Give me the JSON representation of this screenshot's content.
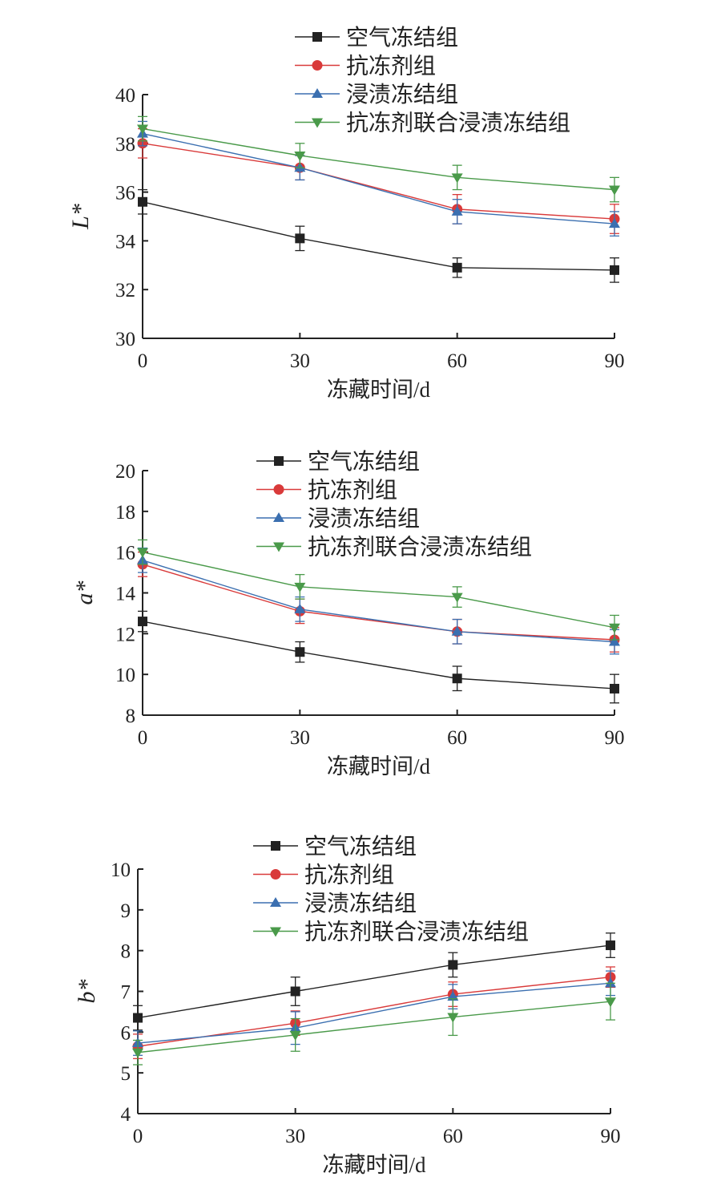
{
  "chart_data": [
    {
      "type": "line",
      "xlabel": "冻藏时间/d",
      "ylabel": "L*",
      "x": [
        0,
        30,
        60,
        90
      ],
      "xlim": [
        0,
        90
      ],
      "ylim": [
        30,
        40
      ],
      "yticks": [
        30,
        32,
        34,
        36,
        38,
        40
      ],
      "grid": false,
      "legend_position": "top",
      "series": [
        {
          "name": "空气冻结组",
          "color": "#222222",
          "marker": "square",
          "values": [
            35.6,
            34.1,
            32.9,
            32.8
          ],
          "errors": [
            0.5,
            0.5,
            0.4,
            0.5
          ]
        },
        {
          "name": "抗冻剂组",
          "color": "#d93a3a",
          "marker": "circle",
          "values": [
            38.0,
            37.0,
            35.3,
            34.9
          ],
          "errors": [
            0.6,
            0.5,
            0.6,
            0.6
          ]
        },
        {
          "name": "浸渍冻结组",
          "color": "#3b6fb0",
          "marker": "triangle-up",
          "values": [
            38.4,
            37.0,
            35.2,
            34.7
          ],
          "errors": [
            0.5,
            0.5,
            0.5,
            0.5
          ]
        },
        {
          "name": "抗冻剂联合浸渍冻结组",
          "color": "#4a9a4a",
          "marker": "triangle-down",
          "values": [
            38.6,
            37.5,
            36.6,
            36.1
          ],
          "errors": [
            0.5,
            0.5,
            0.5,
            0.5
          ]
        }
      ]
    },
    {
      "type": "line",
      "xlabel": "冻藏时间/d",
      "ylabel": "a*",
      "x": [
        0,
        30,
        60,
        90
      ],
      "xlim": [
        0,
        90
      ],
      "ylim": [
        8,
        20
      ],
      "yticks": [
        8,
        10,
        12,
        14,
        16,
        18,
        20
      ],
      "grid": false,
      "legend_position": "top",
      "series": [
        {
          "name": "空气冻结组",
          "color": "#222222",
          "marker": "square",
          "values": [
            12.6,
            11.1,
            9.8,
            9.3
          ],
          "errors": [
            0.5,
            0.5,
            0.6,
            0.7
          ]
        },
        {
          "name": "抗冻剂组",
          "color": "#d93a3a",
          "marker": "circle",
          "values": [
            15.4,
            13.1,
            12.1,
            11.7
          ],
          "errors": [
            0.6,
            0.6,
            0.6,
            0.6
          ]
        },
        {
          "name": "浸渍冻结组",
          "color": "#3b6fb0",
          "marker": "triangle-up",
          "values": [
            15.6,
            13.2,
            12.1,
            11.6
          ],
          "errors": [
            0.6,
            0.6,
            0.6,
            0.6
          ]
        },
        {
          "name": "抗冻剂联合浸渍冻结组",
          "color": "#4a9a4a",
          "marker": "triangle-down",
          "values": [
            16.0,
            14.3,
            13.8,
            12.3
          ],
          "errors": [
            0.6,
            0.6,
            0.5,
            0.6
          ]
        }
      ]
    },
    {
      "type": "line",
      "xlabel": "冻藏时间/d",
      "ylabel": "b*",
      "x": [
        0,
        30,
        60,
        90
      ],
      "xlim": [
        0,
        90
      ],
      "ylim": [
        4,
        10
      ],
      "yticks": [
        4,
        5,
        6,
        7,
        8,
        9,
        10
      ],
      "grid": false,
      "legend_position": "top",
      "series": [
        {
          "name": "空气冻结组",
          "color": "#222222",
          "marker": "square",
          "values": [
            6.35,
            7.0,
            7.65,
            8.13
          ],
          "errors": [
            0.3,
            0.35,
            0.3,
            0.3
          ]
        },
        {
          "name": "抗冻剂组",
          "color": "#d93a3a",
          "marker": "circle",
          "values": [
            5.65,
            6.22,
            6.93,
            7.35
          ],
          "errors": [
            0.3,
            0.3,
            0.3,
            0.25
          ]
        },
        {
          "name": "浸渍冻结组",
          "color": "#3b6fb0",
          "marker": "triangle-up",
          "values": [
            5.73,
            6.1,
            6.87,
            7.2
          ],
          "errors": [
            0.3,
            0.4,
            0.3,
            0.3
          ]
        },
        {
          "name": "抗冻剂联合浸渍冻结组",
          "color": "#4a9a4a",
          "marker": "triangle-down",
          "values": [
            5.5,
            5.93,
            6.37,
            6.75
          ],
          "errors": [
            0.3,
            0.4,
            0.45,
            0.45
          ]
        }
      ]
    }
  ]
}
